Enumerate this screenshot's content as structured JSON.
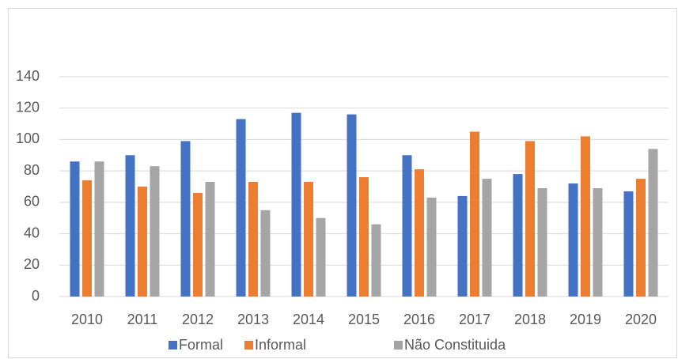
{
  "chart_data": {
    "type": "bar",
    "categories": [
      "2010",
      "2011",
      "2012",
      "2013",
      "2014",
      "2015",
      "2016",
      "2017",
      "2018",
      "2019",
      "2020"
    ],
    "series": [
      {
        "name": "Formal",
        "color": "#4472c4",
        "values": [
          86,
          90,
          99,
          113,
          117,
          116,
          90,
          64,
          78,
          72,
          67
        ]
      },
      {
        "name": "Informal",
        "color": "#ed7d31",
        "values": [
          74,
          70,
          66,
          73,
          73,
          76,
          81,
          105,
          99,
          102,
          75
        ]
      },
      {
        "name": "Não Constituida",
        "color": "#a5a5a5",
        "values": [
          86,
          83,
          73,
          55,
          50,
          46,
          63,
          75,
          69,
          69,
          94
        ]
      }
    ],
    "ylim": [
      0,
      140
    ],
    "yticks": [
      0,
      20,
      40,
      60,
      80,
      100,
      120,
      140
    ],
    "grid": true,
    "legend": "bottom"
  }
}
